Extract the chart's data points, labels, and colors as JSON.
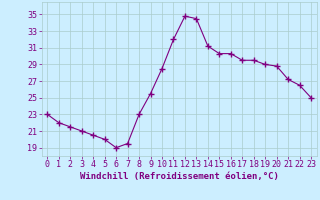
{
  "x": [
    0,
    1,
    2,
    3,
    4,
    5,
    6,
    7,
    8,
    9,
    10,
    11,
    12,
    13,
    14,
    15,
    16,
    17,
    18,
    19,
    20,
    21,
    22,
    23
  ],
  "y": [
    23,
    22,
    21.5,
    21,
    20.5,
    20,
    19,
    19.5,
    23,
    25.5,
    28.5,
    32,
    34.8,
    34.5,
    31.2,
    30.3,
    30.3,
    29.5,
    29.5,
    29,
    28.8,
    27.2,
    26.5,
    25
  ],
  "line_color": "#800080",
  "marker": "+",
  "marker_size": 4,
  "bg_color": "#cceeff",
  "grid_color": "#aacccc",
  "xlabel": "Windchill (Refroidissement éolien,°C)",
  "xlabel_fontsize": 6.5,
  "ylabel_ticks": [
    19,
    21,
    23,
    25,
    27,
    29,
    31,
    33,
    35
  ],
  "xlim": [
    -0.5,
    23.5
  ],
  "ylim": [
    18.0,
    36.5
  ],
  "xticks": [
    0,
    1,
    2,
    3,
    4,
    5,
    6,
    7,
    8,
    9,
    10,
    11,
    12,
    13,
    14,
    15,
    16,
    17,
    18,
    19,
    20,
    21,
    22,
    23
  ],
  "tick_fontsize": 6,
  "label_color": "#800080"
}
